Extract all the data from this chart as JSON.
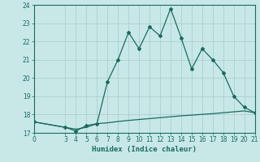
{
  "xlabel": "Humidex (Indice chaleur)",
  "bg_color": "#c8e8e8",
  "grid_color": "#b0d0d0",
  "line_color": "#1a6b5a",
  "xlim": [
    0,
    21
  ],
  "ylim": [
    17,
    24
  ],
  "xticks": [
    0,
    3,
    4,
    5,
    6,
    7,
    8,
    9,
    10,
    11,
    12,
    13,
    14,
    15,
    16,
    17,
    18,
    19,
    20,
    21
  ],
  "yticks": [
    17,
    18,
    19,
    20,
    21,
    22,
    23,
    24
  ],
  "line1_x": [
    0,
    3,
    4,
    5,
    6,
    7,
    8,
    9,
    10,
    11,
    12,
    13,
    14,
    15,
    16,
    17,
    18,
    19,
    20,
    21
  ],
  "line1_y": [
    17.6,
    17.3,
    17.1,
    17.4,
    17.5,
    19.8,
    21.0,
    22.5,
    21.6,
    22.8,
    22.3,
    23.8,
    22.2,
    20.5,
    21.6,
    21.0,
    20.3,
    19.0,
    18.4,
    18.1
  ],
  "line2_x": [
    0,
    3,
    4,
    5,
    6,
    7,
    8,
    9,
    10,
    11,
    12,
    13,
    14,
    15,
    16,
    17,
    18,
    19,
    20,
    21
  ],
  "line2_y": [
    17.6,
    17.3,
    17.2,
    17.3,
    17.5,
    17.55,
    17.62,
    17.68,
    17.73,
    17.78,
    17.83,
    17.88,
    17.93,
    17.97,
    18.01,
    18.05,
    18.1,
    18.15,
    18.2,
    18.1
  ]
}
